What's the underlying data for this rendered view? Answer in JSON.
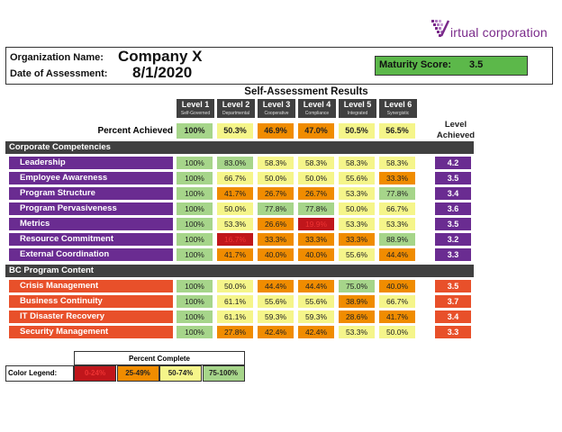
{
  "logo": {
    "text": "irtual corporation"
  },
  "header": {
    "org_label": "Organization Name:",
    "org_value": "Company X",
    "date_label": "Date of Assessment:",
    "date_value": "8/1/2020",
    "score_label": "Maturity Score:",
    "score_value": "3.5"
  },
  "table": {
    "title": "Self-Assessment Results",
    "levels": [
      {
        "name": "Level 1",
        "sub": "Self-Governed"
      },
      {
        "name": "Level 2",
        "sub": "Departmental"
      },
      {
        "name": "Level 3",
        "sub": "Cooperative"
      },
      {
        "name": "Level 4",
        "sub": "Compliance"
      },
      {
        "name": "Level 5",
        "sub": "Integrated"
      },
      {
        "name": "Level 6",
        "sub": "Synergistic"
      }
    ],
    "percent_achieved_label": "Percent Achieved",
    "percent_achieved": [
      "100%",
      "50.3%",
      "46.9%",
      "47.0%",
      "50.5%",
      "56.5%"
    ],
    "level_achieved_label": "Level Achieved",
    "sections": [
      {
        "title": "Corporate Competencies",
        "color": "#6a2c91",
        "rows": [
          {
            "label": "Leadership",
            "values": [
              "100%",
              "83.0%",
              "58.3%",
              "58.3%",
              "58.3%",
              "58.3%"
            ],
            "achieved": "4.2"
          },
          {
            "label": "Employee Awareness",
            "values": [
              "100%",
              "66.7%",
              "50.0%",
              "50.0%",
              "55.6%",
              "33.3%"
            ],
            "achieved": "3.5"
          },
          {
            "label": "Program Structure",
            "values": [
              "100%",
              "41.7%",
              "26.7%",
              "26.7%",
              "53.3%",
              "77.8%"
            ],
            "achieved": "3.4"
          },
          {
            "label": "Program Pervasiveness",
            "values": [
              "100%",
              "50.0%",
              "77.8%",
              "77.8%",
              "50.0%",
              "66.7%"
            ],
            "achieved": "3.6"
          },
          {
            "label": "Metrics",
            "values": [
              "100%",
              "53.3%",
              "26.6%",
              "19.9%",
              "53.3%",
              "53.3%"
            ],
            "achieved": "3.5"
          },
          {
            "label": "Resource Commitment",
            "values": [
              "100%",
              "16.7%",
              "33.3%",
              "33.3%",
              "33.3%",
              "88.9%"
            ],
            "achieved": "3.2"
          },
          {
            "label": "External Coordination",
            "values": [
              "100%",
              "41.7%",
              "40.0%",
              "40.0%",
              "55.6%",
              "44.4%"
            ],
            "achieved": "3.3"
          }
        ]
      },
      {
        "title": "BC Program Content",
        "color": "#e8502a",
        "rows": [
          {
            "label": "Crisis Management",
            "values": [
              "100%",
              "50.0%",
              "44.4%",
              "44.4%",
              "75.0%",
              "40.0%"
            ],
            "achieved": "3.5"
          },
          {
            "label": "Business Continuity",
            "values": [
              "100%",
              "61.1%",
              "55.6%",
              "55.6%",
              "38.9%",
              "66.7%"
            ],
            "achieved": "3.7"
          },
          {
            "label": "IT Disaster Recovery",
            "values": [
              "100%",
              "61.1%",
              "59.3%",
              "59.3%",
              "28.6%",
              "41.7%"
            ],
            "achieved": "3.4"
          },
          {
            "label": "Security Management",
            "values": [
              "100%",
              "27.8%",
              "42.4%",
              "42.4%",
              "53.3%",
              "50.0%"
            ],
            "achieved": "3.3"
          }
        ]
      }
    ]
  },
  "legend": {
    "title": "Percent Complete",
    "label": "Color Legend:",
    "ranges": [
      {
        "text": "0-24%",
        "color": "#c0161b"
      },
      {
        "text": "25-49%",
        "color": "#f08c00"
      },
      {
        "text": "50-74%",
        "color": "#f5f58a"
      },
      {
        "text": "75-100%",
        "color": "#a6d58a"
      }
    ]
  }
}
